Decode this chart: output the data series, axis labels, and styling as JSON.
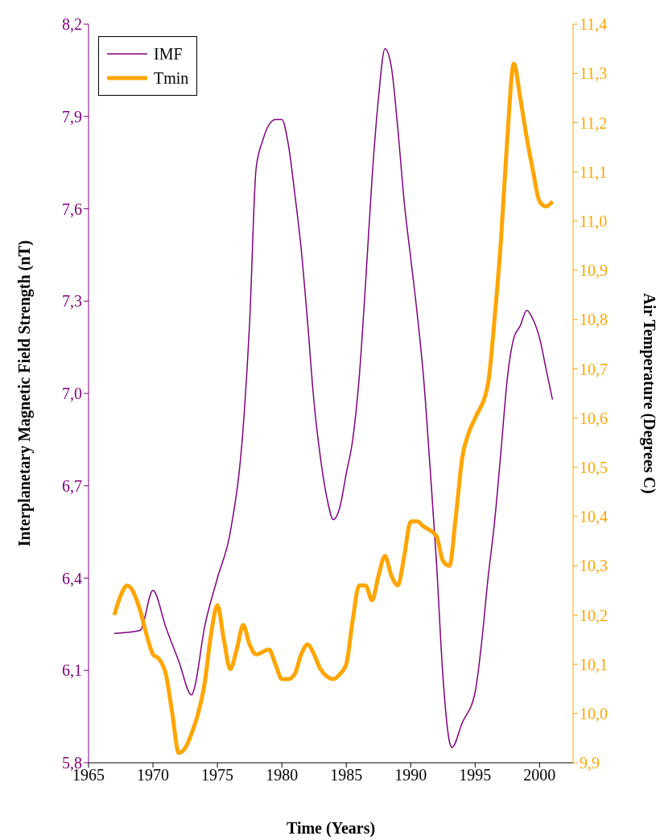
{
  "chart_data": {
    "type": "line",
    "xlabel": "Time (Years)",
    "ylabel": "Interplanetary Magnetic Field Strength (nT)",
    "y2label": "Air Temperature (Degrees C)",
    "xlim": [
      1965,
      2002.6
    ],
    "xticks": [
      1965,
      1970,
      1975,
      1980,
      1985,
      1990,
      1995,
      2000
    ],
    "ylim": [
      5.8,
      8.2
    ],
    "yticks": [
      {
        "value": 5.8,
        "label": "5,8"
      },
      {
        "value": 6.1,
        "label": "6,1"
      },
      {
        "value": 6.4,
        "label": "6,4"
      },
      {
        "value": 6.7,
        "label": "6,7"
      },
      {
        "value": 7.0,
        "label": "7,0"
      },
      {
        "value": 7.3,
        "label": "7,3"
      },
      {
        "value": 7.6,
        "label": "7,6"
      },
      {
        "value": 7.9,
        "label": "7,9"
      },
      {
        "value": 8.2,
        "label": "8,2"
      }
    ],
    "y2lim": [
      9.9,
      11.4
    ],
    "y2ticks": [
      {
        "value": 9.9,
        "label": "9,9"
      },
      {
        "value": 10.0,
        "label": "10,0"
      },
      {
        "value": 10.1,
        "label": "10,1"
      },
      {
        "value": 10.2,
        "label": "10,2"
      },
      {
        "value": 10.3,
        "label": "10,3"
      },
      {
        "value": 10.4,
        "label": "10,4"
      },
      {
        "value": 10.5,
        "label": "10,5"
      },
      {
        "value": 10.6,
        "label": "10,6"
      },
      {
        "value": 10.7,
        "label": "10,7"
      },
      {
        "value": 10.8,
        "label": "10,8"
      },
      {
        "value": 10.9,
        "label": "10,9"
      },
      {
        "value": 11.0,
        "label": "11,0"
      },
      {
        "value": 11.1,
        "label": "11,1"
      },
      {
        "value": 11.2,
        "label": "11,2"
      },
      {
        "value": 11.3,
        "label": "11,3"
      },
      {
        "value": 11.4,
        "label": "11,4"
      }
    ],
    "legend": "top left",
    "marker": "none",
    "line_style": "solid",
    "series": [
      {
        "name": "IMF",
        "color": "#800080",
        "x": [
          1967,
          1969,
          1970,
          1971,
          1972,
          1973,
          1973.2,
          1974,
          1975,
          1976,
          1977,
          1977.5,
          1978,
          1978.5,
          1979.5,
          1980,
          1980.5,
          1981,
          1981.5,
          1982,
          1982.5,
          1983,
          1983.5,
          1984,
          1984.5,
          1985,
          1985.5,
          1986,
          1986.5,
          1987,
          1987.5,
          1988,
          1988.5,
          1989,
          1989.5,
          1990,
          1990.5,
          1991,
          1991.5,
          1992,
          1992.5,
          1993,
          1993.2,
          1994,
          1995,
          1995.5,
          1996,
          1996.5,
          1997,
          1997.5,
          1998,
          1998.5,
          1999,
          1999.5,
          2000,
          2000.5,
          2001
        ],
        "values": [
          6.22,
          6.23,
          6.36,
          6.24,
          6.13,
          6.02,
          6.04,
          6.24,
          6.4,
          6.55,
          6.89,
          7.23,
          7.73,
          7.82,
          7.89,
          7.89,
          7.81,
          7.65,
          7.47,
          7.23,
          6.97,
          6.79,
          6.66,
          6.59,
          6.63,
          6.74,
          6.85,
          7.05,
          7.36,
          7.7,
          7.96,
          8.12,
          8.06,
          7.86,
          7.62,
          7.44,
          7.26,
          7.05,
          6.76,
          6.45,
          6.08,
          5.87,
          5.85,
          5.93,
          6.03,
          6.19,
          6.4,
          6.58,
          6.81,
          7.05,
          7.18,
          7.22,
          7.27,
          7.24,
          7.18,
          7.08,
          6.98
        ]
      },
      {
        "name": "Tmin",
        "color": "#ffa500",
        "axis": "y2",
        "x": [
          1967,
          1967.5,
          1968,
          1969,
          1969.5,
          1970,
          1970.5,
          1971,
          1971.5,
          1972,
          1972.5,
          1973,
          1973.5,
          1974,
          1974.5,
          1975,
          1975.5,
          1976,
          1976.5,
          1977,
          1977.5,
          1978,
          1979,
          1979.5,
          1980,
          1980.5,
          1981,
          1981.5,
          1982,
          1982.5,
          1983,
          1984,
          1984.5,
          1985,
          1985.5,
          1986,
          1986.5,
          1987,
          1987.5,
          1988,
          1988.5,
          1989,
          1989.5,
          1990,
          1990.5,
          1991,
          1992,
          1992.5,
          1993,
          1993.5,
          1994,
          1994.5,
          1995,
          1996,
          1996.5,
          1997,
          1997.5,
          1998,
          1998.5,
          1999,
          1999.5,
          2000,
          2000.5,
          2001
        ],
        "values": [
          10.2,
          10.24,
          10.26,
          10.21,
          10.16,
          10.12,
          10.11,
          10.08,
          10.0,
          9.92,
          9.93,
          9.96,
          10.0,
          10.06,
          10.16,
          10.22,
          10.15,
          10.09,
          10.13,
          10.18,
          10.14,
          10.12,
          10.13,
          10.1,
          10.07,
          10.07,
          10.08,
          10.12,
          10.14,
          10.12,
          10.09,
          10.07,
          10.08,
          10.1,
          10.19,
          10.26,
          10.26,
          10.23,
          10.28,
          10.32,
          10.28,
          10.26,
          10.32,
          10.39,
          10.39,
          10.38,
          10.36,
          10.31,
          10.3,
          10.4,
          10.52,
          10.57,
          10.6,
          10.67,
          10.8,
          10.96,
          11.17,
          11.32,
          11.25,
          11.17,
          11.1,
          11.04,
          11.03,
          11.04
        ]
      }
    ]
  }
}
